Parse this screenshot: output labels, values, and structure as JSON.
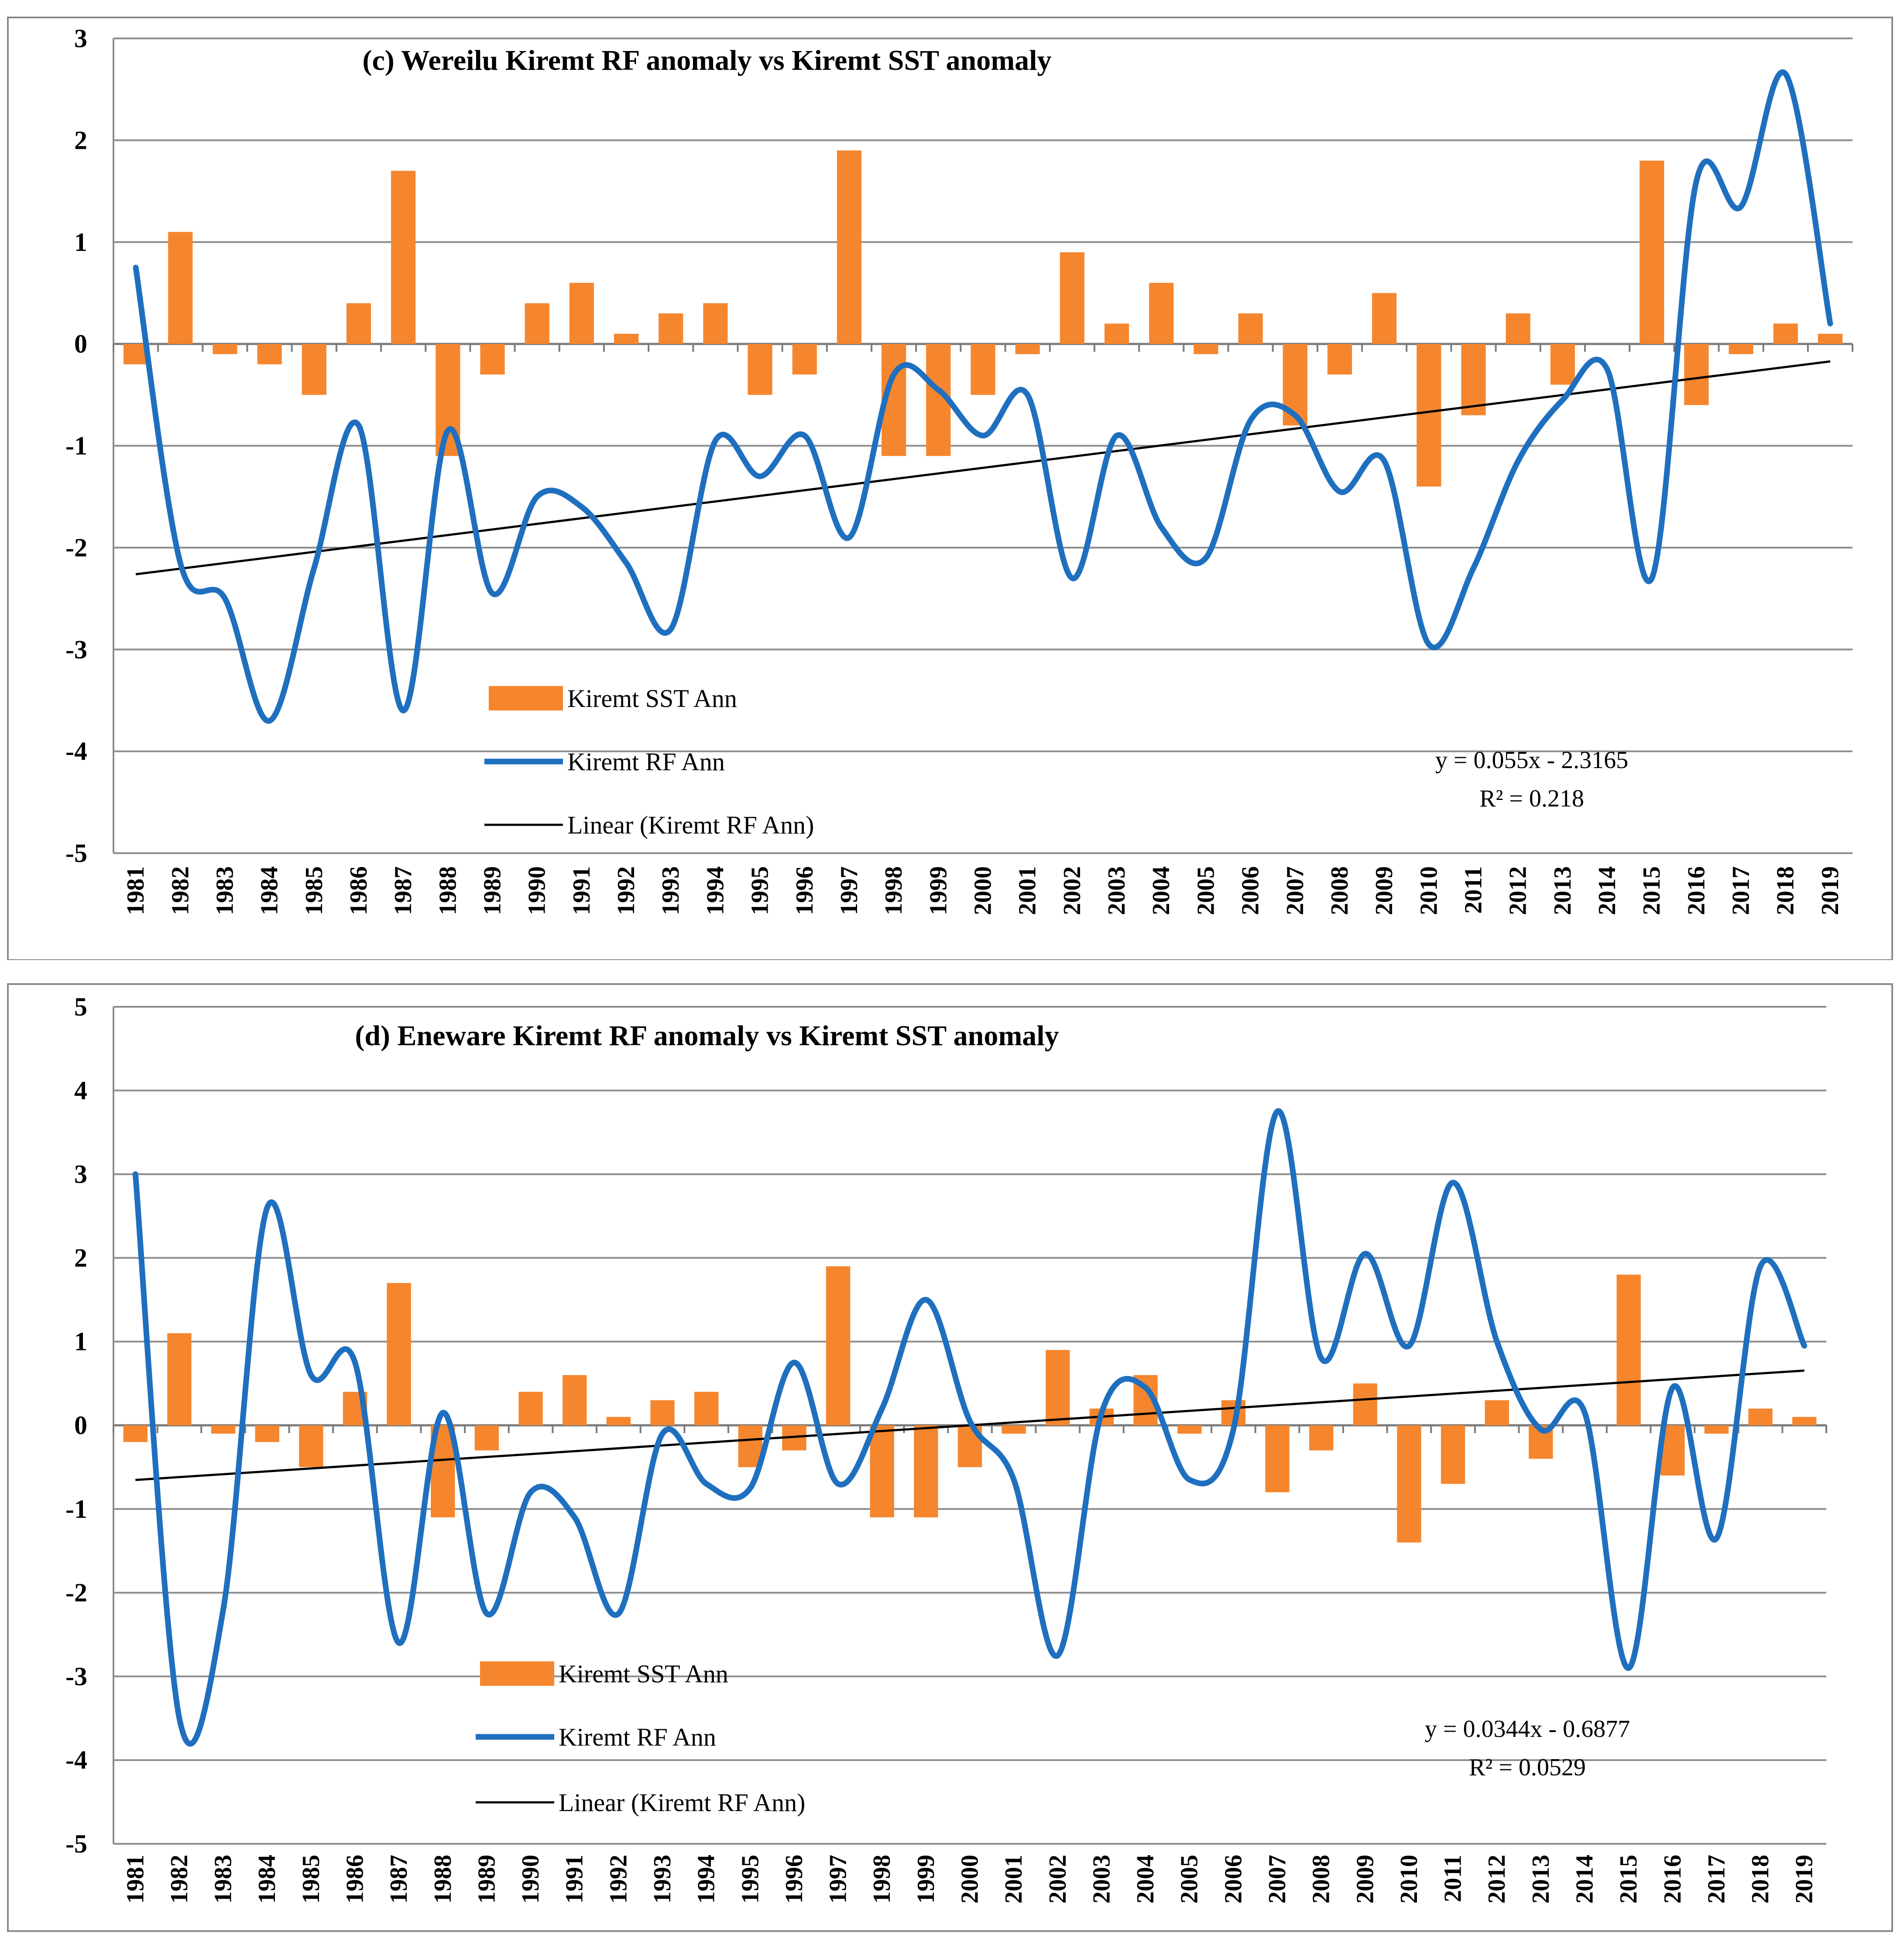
{
  "chart_data": [
    {
      "type": "bar",
      "title": "(c) Wereilu Kiremt RF anomaly vs Kiremt SST  anomaly",
      "xlabel": "",
      "ylabel": "",
      "ylim": [
        -5,
        3
      ],
      "yticks": [
        "3",
        "2",
        "1",
        "0",
        "-1",
        "-2",
        "-3",
        "-4",
        "-5"
      ],
      "grid": true,
      "categories": [
        "1981",
        "1982",
        "1983",
        "1984",
        "1985",
        "1986",
        "1987",
        "1988",
        "1989",
        "1990",
        "1991",
        "1992",
        "1993",
        "1994",
        "1995",
        "1996",
        "1997",
        "1998",
        "1999",
        "2000",
        "2001",
        "2002",
        "2003",
        "2004",
        "2005",
        "2006",
        "2007",
        "2008",
        "2009",
        "2010",
        "2011",
        "2012",
        "2013",
        "2014",
        "2015",
        "2016",
        "2017",
        "2018",
        "2019"
      ],
      "series": [
        {
          "name": "Kiremt SST Ann",
          "kind": "bar",
          "color": "#f5862e",
          "values": [
            -0.2,
            1.1,
            -0.1,
            -0.2,
            -0.5,
            0.4,
            1.7,
            -1.1,
            -0.3,
            0.4,
            0.6,
            0.1,
            0.3,
            0.4,
            -0.5,
            -0.3,
            1.9,
            -1.1,
            -1.1,
            -0.5,
            -0.1,
            0.9,
            0.2,
            0.6,
            -0.1,
            0.3,
            -0.8,
            -0.3,
            0.5,
            -1.4,
            -0.7,
            0.3,
            -0.4,
            0.0,
            1.8,
            -0.6,
            -0.1,
            0.2,
            0.1
          ]
        },
        {
          "name": "Kiremt RF Ann",
          "kind": "smooth-line",
          "color": "#1f6fbf",
          "values": [
            0.75,
            -2.15,
            -2.5,
            -3.7,
            -2.2,
            -0.8,
            -3.6,
            -0.85,
            -2.45,
            -1.5,
            -1.6,
            -2.15,
            -2.8,
            -0.95,
            -1.3,
            -0.9,
            -1.9,
            -0.3,
            -0.45,
            -0.9,
            -0.5,
            -2.3,
            -0.9,
            -1.8,
            -2.1,
            -0.75,
            -0.7,
            -1.45,
            -1.15,
            -2.95,
            -2.2,
            -1.15,
            -0.55,
            -0.25,
            -2.3,
            1.6,
            1.35,
            2.65,
            0.2
          ]
        },
        {
          "name": "Linear (Kiremt RF Ann)",
          "kind": "trendline",
          "color": "#000000",
          "slope": 0.055,
          "intercept": -2.3165
        }
      ],
      "legend": {
        "placement": "lower-left-inside",
        "items": [
          "Kiremt SST Ann",
          "Kiremt RF Ann",
          "Linear (Kiremt RF Ann)"
        ]
      },
      "equation": {
        "line1": "y = 0.055x - 2.3165",
        "line2": "R² = 0.218"
      }
    },
    {
      "type": "bar",
      "title": "(d) Eneware Kiremt RF anomaly vs Kiremt SST anomaly",
      "xlabel": "",
      "ylabel": "",
      "ylim": [
        -5,
        5
      ],
      "yticks": [
        "5",
        "4",
        "3",
        "2",
        "1",
        "0",
        "-1",
        "-2",
        "-3",
        "-4",
        "-5"
      ],
      "grid": true,
      "categories": [
        "1981",
        "1982",
        "1983",
        "1984",
        "1985",
        "1986",
        "1987",
        "1988",
        "1989",
        "1990",
        "1991",
        "1992",
        "1993",
        "1994",
        "1995",
        "1996",
        "1997",
        "1998",
        "1999",
        "2000",
        "2001",
        "2002",
        "2003",
        "2004",
        "2005",
        "2006",
        "2007",
        "2008",
        "2009",
        "2010",
        "2011",
        "2012",
        "2013",
        "2014",
        "2015",
        "2016",
        "2017",
        "2018",
        "2019"
      ],
      "series": [
        {
          "name": "Kiremt SST Ann",
          "kind": "bar",
          "color": "#f5862e",
          "values": [
            -0.2,
            1.1,
            -0.1,
            -0.2,
            -0.5,
            0.4,
            1.7,
            -1.1,
            -0.3,
            0.4,
            0.6,
            0.1,
            0.3,
            0.4,
            -0.5,
            -0.3,
            1.9,
            -1.1,
            -1.1,
            -0.5,
            -0.1,
            0.9,
            0.2,
            0.6,
            -0.1,
            0.3,
            -0.8,
            -0.3,
            0.5,
            -1.4,
            -0.7,
            0.3,
            -0.4,
            0.0,
            1.8,
            -0.6,
            -0.1,
            0.2,
            0.1
          ]
        },
        {
          "name": "Kiremt RF Ann",
          "kind": "smooth-line",
          "color": "#1f6fbf",
          "values": [
            3.0,
            -3.5,
            -2.2,
            2.6,
            0.6,
            0.75,
            -2.6,
            0.15,
            -2.25,
            -0.8,
            -1.1,
            -2.25,
            -0.1,
            -0.7,
            -0.75,
            0.75,
            -0.7,
            0.2,
            1.5,
            0.05,
            -0.65,
            -2.75,
            0.15,
            0.45,
            -0.65,
            -0.05,
            3.75,
            0.8,
            2.05,
            0.95,
            2.9,
            1.0,
            -0.05,
            0.15,
            -2.9,
            0.45,
            -1.35,
            1.9,
            0.95
          ]
        },
        {
          "name": "Linear (Kiremt RF Ann)",
          "kind": "trendline",
          "color": "#000000",
          "slope": 0.0344,
          "intercept": -0.6877
        }
      ],
      "legend": {
        "placement": "lower-left-inside",
        "items": [
          "Kiremt SST Ann",
          "Kiremt RF Ann",
          "Linear (Kiremt RF Ann)"
        ]
      },
      "equation": {
        "line1": "y = 0.0344x - 0.6877",
        "line2": "R² = 0.0529"
      }
    }
  ]
}
